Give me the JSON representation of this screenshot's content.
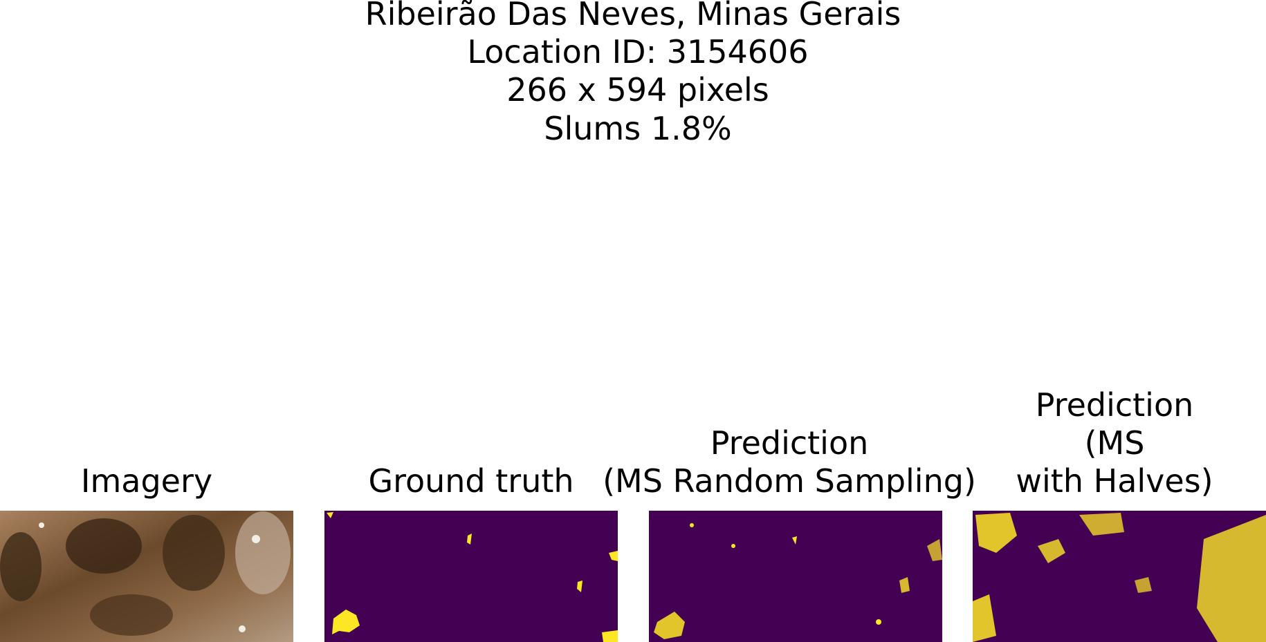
{
  "header": {
    "lines": [
      "Ribeirão Das Neves, Minas Gerais",
      "Location ID: 3154606",
      "266 x 594 pixels",
      "Slums 1.8%"
    ]
  },
  "panels": [
    {
      "title_lines": [
        "Imagery"
      ]
    },
    {
      "title_lines": [
        "Ground truth"
      ]
    },
    {
      "title_lines": [
        "Prediction",
        "(MS Random Sampling)"
      ]
    },
    {
      "title_lines": [
        "Prediction",
        "(MS",
        "with Halves)"
      ]
    }
  ]
}
